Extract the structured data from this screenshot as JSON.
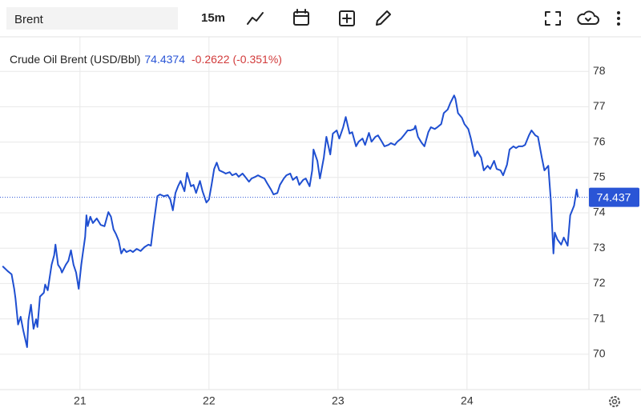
{
  "toolbar": {
    "symbol": "Brent",
    "interval": "15m"
  },
  "chart_data": {
    "type": "line",
    "title": "Crude Oil Brent (USD/Bbl)",
    "last_price": 74.4374,
    "change": -0.2622,
    "change_percent_label": "(-0.351%)",
    "price_color": "#2a55d6",
    "change_color": "#d23b3b",
    "color": "#1f4fd1",
    "last_value": 74.437,
    "x": [
      20.4,
      20.44,
      20.47,
      20.49,
      20.5,
      20.52,
      20.54,
      20.56,
      20.59,
      20.6,
      20.62,
      20.64,
      20.66,
      20.67,
      20.69,
      20.72,
      20.73,
      20.75,
      20.78,
      20.8,
      20.81,
      20.83,
      20.85,
      20.86,
      20.89,
      20.91,
      20.93,
      20.95,
      20.97,
      20.99,
      21.01,
      21.02,
      21.04,
      21.05,
      21.06,
      21.08,
      21.1,
      21.13,
      21.16,
      21.19,
      21.22,
      21.24,
      21.26,
      21.28,
      21.3,
      21.32,
      21.34,
      21.36,
      21.39,
      21.41,
      21.44,
      21.47,
      21.5,
      21.53,
      21.55,
      21.57,
      21.6,
      21.62,
      21.65,
      21.68,
      21.7,
      21.72,
      21.74,
      21.76,
      21.78,
      21.81,
      21.83,
      21.86,
      21.88,
      21.9,
      21.93,
      21.95,
      21.98,
      22.0,
      22.02,
      22.04,
      22.06,
      22.08,
      22.11,
      22.13,
      22.16,
      22.18,
      22.21,
      22.23,
      22.26,
      22.28,
      22.31,
      22.33,
      22.36,
      22.38,
      22.4,
      22.43,
      22.45,
      22.48,
      22.5,
      22.53,
      22.55,
      22.58,
      22.6,
      22.63,
      22.65,
      22.68,
      22.7,
      22.73,
      22.75,
      22.78,
      22.8,
      22.81,
      22.84,
      22.86,
      22.89,
      22.91,
      22.94,
      22.96,
      22.99,
      23.01,
      23.04,
      23.06,
      23.09,
      23.11,
      23.14,
      23.16,
      23.19,
      23.21,
      23.24,
      23.26,
      23.29,
      23.31,
      23.34,
      23.36,
      23.39,
      23.41,
      23.44,
      23.46,
      23.49,
      23.51,
      23.54,
      23.56,
      23.59,
      23.6,
      23.62,
      23.65,
      23.67,
      23.7,
      23.72,
      23.75,
      23.77,
      23.8,
      23.82,
      23.85,
      23.87,
      23.9,
      23.91,
      23.93,
      23.96,
      23.98,
      24.01,
      24.03,
      24.06,
      24.08,
      24.11,
      24.13,
      24.16,
      24.18,
      24.21,
      24.23,
      24.26,
      24.28,
      24.31,
      24.33,
      24.36,
      24.38,
      24.4,
      24.43,
      24.45,
      24.48,
      24.5,
      24.53,
      24.55,
      24.58,
      24.6,
      24.63,
      24.65,
      24.67,
      24.68,
      24.7,
      24.73,
      24.75,
      24.78,
      24.8,
      24.83,
      24.85,
      24.86
    ],
    "values": [
      72.49,
      72.35,
      72.26,
      71.85,
      71.58,
      70.84,
      71.06,
      70.68,
      70.2,
      70.95,
      71.4,
      70.72,
      70.99,
      70.77,
      71.63,
      71.74,
      71.97,
      71.81,
      72.53,
      72.8,
      73.1,
      72.53,
      72.42,
      72.31,
      72.53,
      72.64,
      72.94,
      72.53,
      72.31,
      71.85,
      72.53,
      72.8,
      73.32,
      73.93,
      73.62,
      73.89,
      73.71,
      73.84,
      73.66,
      73.62,
      74.02,
      73.89,
      73.53,
      73.39,
      73.21,
      72.85,
      72.98,
      72.89,
      72.94,
      72.89,
      72.98,
      72.92,
      73.03,
      73.1,
      73.07,
      73.66,
      74.47,
      74.52,
      74.47,
      74.5,
      74.38,
      74.07,
      74.56,
      74.75,
      74.9,
      74.61,
      75.13,
      74.75,
      74.79,
      74.56,
      74.9,
      74.61,
      74.29,
      74.38,
      74.79,
      75.24,
      75.42,
      75.2,
      75.15,
      75.11,
      75.15,
      75.06,
      75.11,
      75.02,
      75.11,
      75.02,
      74.88,
      74.97,
      75.02,
      75.06,
      75.02,
      74.97,
      74.84,
      74.66,
      74.52,
      74.56,
      74.79,
      74.97,
      75.06,
      75.11,
      74.93,
      75.02,
      74.79,
      74.93,
      74.97,
      74.75,
      75.2,
      75.79,
      75.47,
      74.97,
      75.56,
      76.15,
      75.65,
      76.24,
      76.33,
      76.1,
      76.42,
      76.71,
      76.24,
      76.28,
      75.88,
      76.01,
      76.1,
      75.92,
      76.26,
      76.01,
      76.15,
      76.19,
      76.01,
      75.88,
      75.92,
      75.97,
      75.92,
      76.01,
      76.1,
      76.19,
      76.33,
      76.33,
      76.37,
      76.46,
      76.15,
      75.97,
      75.88,
      76.28,
      76.42,
      76.37,
      76.42,
      76.51,
      76.82,
      76.92,
      77.1,
      77.32,
      77.23,
      76.82,
      76.69,
      76.51,
      76.37,
      76.1,
      75.6,
      75.74,
      75.56,
      75.2,
      75.33,
      75.24,
      75.47,
      75.24,
      75.2,
      75.06,
      75.36,
      75.79,
      75.88,
      75.83,
      75.88,
      75.88,
      75.92,
      76.19,
      76.33,
      76.19,
      76.15,
      75.56,
      75.2,
      75.33,
      74.34,
      72.85,
      73.44,
      73.25,
      73.1,
      73.3,
      73.07,
      73.93,
      74.2,
      74.66,
      74.44
    ],
    "xlim": [
      20.38,
      24.945
    ],
    "xticks": [
      21,
      22,
      23,
      24
    ],
    "ylim": [
      69,
      79
    ],
    "yticks": [
      70,
      71,
      72,
      73,
      74,
      75,
      76,
      77,
      78
    ],
    "grid": true
  }
}
